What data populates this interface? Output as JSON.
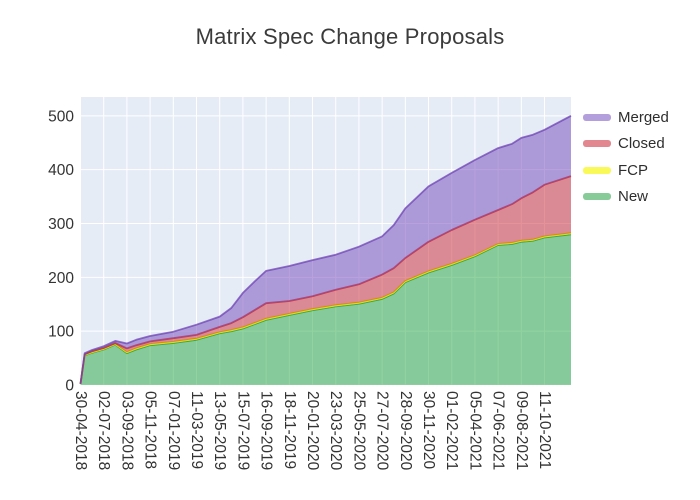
{
  "figure": {
    "title": "Matrix Spec Change Proposals"
  },
  "legend": {
    "items": [
      {
        "label": "Merged",
        "swatch": "#b39fdc"
      },
      {
        "label": "Closed",
        "swatch": "#e2878f"
      },
      {
        "label": "FCP",
        "swatch": "#f9f95a"
      },
      {
        "label": "New",
        "swatch": "#87cb99"
      }
    ]
  },
  "chart_data": {
    "type": "area",
    "stacked": true,
    "title": "Matrix Spec Change Proposals",
    "xlabel": "",
    "ylabel": "",
    "grid": true,
    "legend_position": "right",
    "plot_bg": "#e5ecf6",
    "grid_color": "#ffffff",
    "tick_label_color": "#333333",
    "ylim": [
      0,
      535
    ],
    "y_ticks": [
      0,
      100,
      200,
      300,
      400,
      500
    ],
    "x_tick_labels": [
      "30-04-2018",
      "02-07-2018",
      "03-09-2018",
      "05-11-2018",
      "07-01-2019",
      "11-03-2019",
      "13-05-2019",
      "15-07-2019",
      "16-09-2019",
      "18-11-2019",
      "20-01-2020",
      "23-03-2020",
      "25-05-2020",
      "27-07-2020",
      "28-09-2020",
      "30-11-2020",
      "01-02-2021",
      "05-04-2021",
      "07-06-2021",
      "09-08-2021",
      "11-10-2021"
    ],
    "x_points_in_tick_units": [
      0,
      0.18,
      0.5,
      1,
      1.5,
      2,
      2.4,
      3,
      4,
      5,
      6,
      6.5,
      7,
      7.5,
      8,
      9,
      10,
      11,
      12,
      13,
      13.5,
      14,
      15,
      16,
      17,
      18,
      18.6,
      19,
      19.5,
      20,
      21.14
    ],
    "stack_order_bottom_to_top": [
      "New",
      "FCP",
      "Closed",
      "Merged"
    ],
    "series": [
      {
        "name": "New",
        "fill": "rgba(40,168,66,0.5)",
        "line": "rgba(35,150,60,0.75)",
        "values": [
          2,
          55,
          60,
          66,
          75,
          59,
          66,
          74,
          78,
          84,
          96,
          100,
          105,
          113,
          121,
          130,
          139,
          146,
          151,
          160,
          170,
          191,
          209,
          223,
          239,
          260,
          262,
          266,
          268,
          274,
          280
        ]
      },
      {
        "name": "FCP",
        "fill": "rgba(255,255,0,0.7)",
        "line": "rgba(225,225,0,0.9)",
        "values": [
          0,
          1,
          1,
          1,
          1,
          2,
          2,
          2,
          2,
          2,
          2,
          2,
          2,
          2,
          2,
          2,
          2,
          2,
          2,
          2,
          2,
          2,
          2,
          2,
          2,
          2,
          2,
          2,
          2,
          2,
          2
        ]
      },
      {
        "name": "Closed",
        "fill": "rgba(205,40,50,0.5)",
        "line": "rgba(190,35,55,0.75)",
        "values": [
          0,
          1,
          2,
          2,
          2,
          7,
          6,
          5,
          7,
          7,
          10,
          13,
          19,
          24,
          29,
          24,
          24,
          29,
          34,
          43,
          45,
          43,
          55,
          63,
          66,
          63,
          72,
          79,
          88,
          96,
          106
        ]
      },
      {
        "name": "Merged",
        "fill": "rgba(115,70,185,0.5)",
        "line": "rgba(110,65,180,0.75)",
        "values": [
          0,
          2,
          2,
          3,
          4,
          9,
          10,
          10,
          12,
          19,
          19,
          28,
          45,
          53,
          60,
          65,
          67,
          65,
          70,
          71,
          80,
          92,
          103,
          106,
          111,
          115,
          112,
          112,
          107,
          102,
          112
        ]
      }
    ]
  }
}
